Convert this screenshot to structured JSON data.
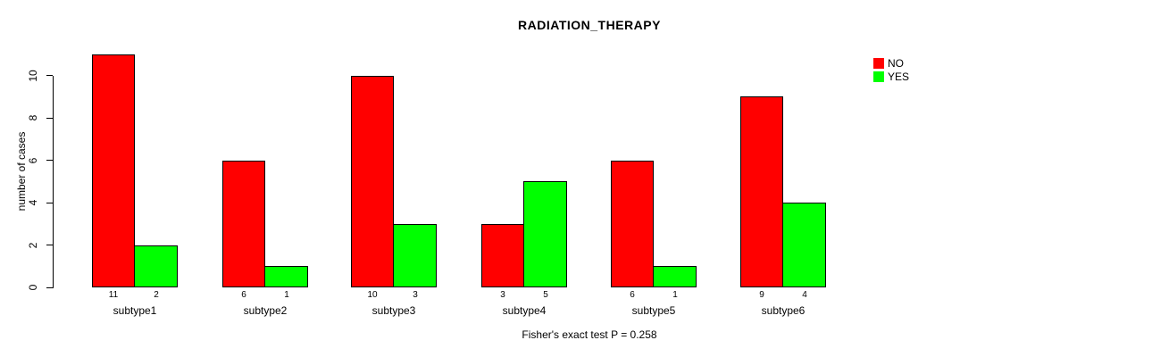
{
  "chart_data": {
    "type": "bar",
    "title": "RADIATION_THERAPY",
    "ylabel": "number of cases",
    "xlabel": "",
    "categories": [
      "subtype1",
      "subtype2",
      "subtype3",
      "subtype4",
      "subtype5",
      "subtype6"
    ],
    "series": [
      {
        "name": "NO",
        "color": "#FF0000",
        "values": [
          11,
          6,
          10,
          3,
          6,
          9
        ]
      },
      {
        "name": "YES",
        "color": "#00FF00",
        "values": [
          2,
          1,
          3,
          5,
          1,
          4
        ]
      }
    ],
    "ylim": [
      0,
      10
    ],
    "yticks": [
      0,
      2,
      4,
      6,
      8,
      10
    ],
    "grid": false,
    "legend_position": "top-right",
    "bar_value_labels_shown": true,
    "annotation": "Fisher's exact test P = 0.258"
  }
}
